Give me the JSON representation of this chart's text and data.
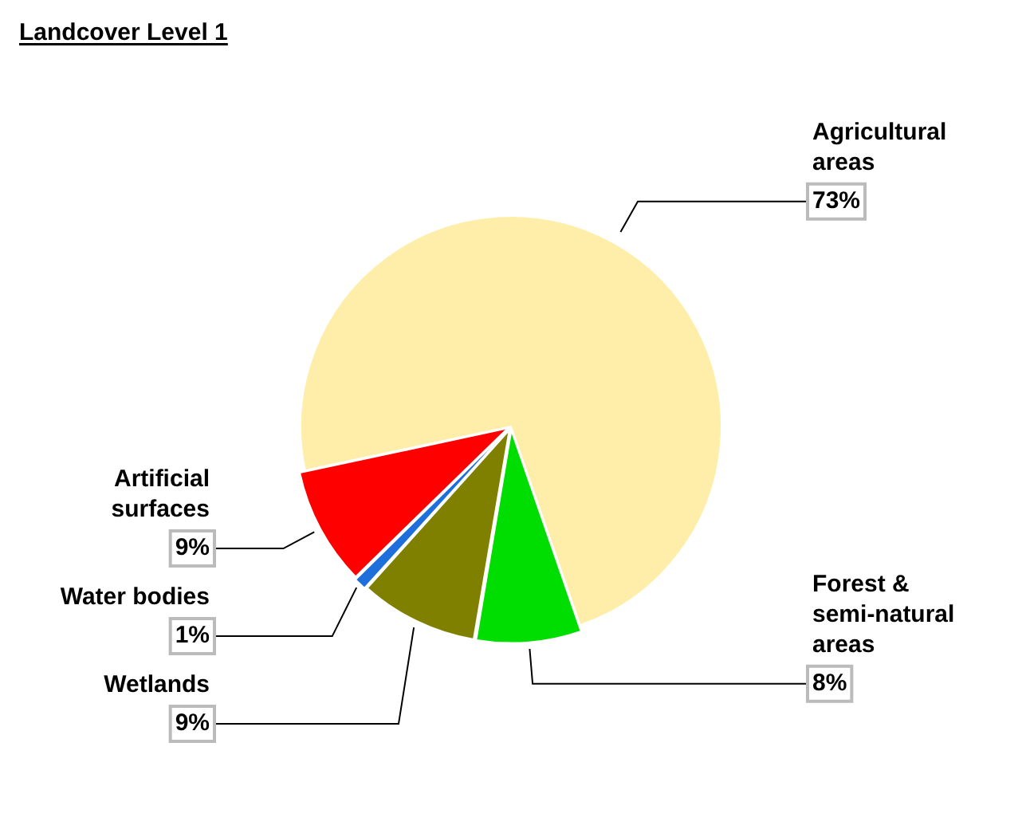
{
  "chart_data": {
    "type": "pie",
    "title": "Landcover Level 1",
    "categories": [
      "Agricultural areas",
      "Forest & semi-natural areas",
      "Wetlands",
      "Water bodies",
      "Artificial surfaces"
    ],
    "values": [
      73,
      8,
      9,
      1,
      9
    ],
    "value_labels": [
      "73%",
      "8%",
      "9%",
      "1%",
      "9%"
    ],
    "colors": [
      "#ffeeaa",
      "#00dd00",
      "#808000",
      "#1e6fdc",
      "#ff0000"
    ],
    "legend": false
  }
}
